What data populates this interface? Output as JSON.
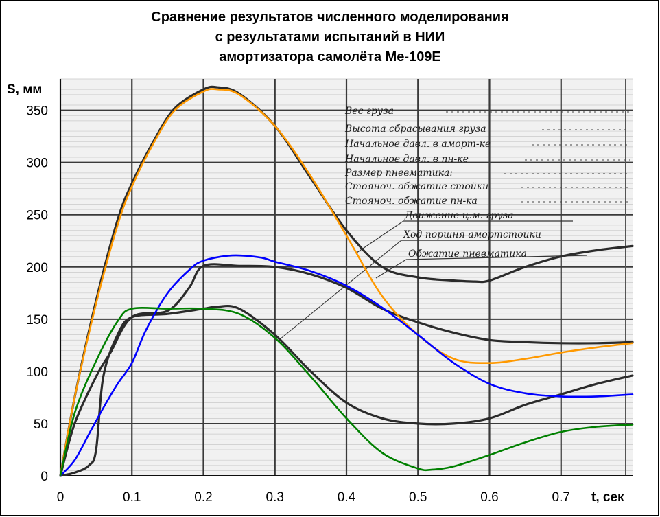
{
  "chart_data": {
    "type": "line",
    "title": [
      "Сравнение результатов численного моделирования",
      "с результатами испытаний в НИИ",
      "амортизатора самолёта Ме-109Е"
    ],
    "xlabel": "t, сек",
    "ylabel": "S, мм",
    "xlim": [
      0,
      0.8
    ],
    "ylim": [
      0,
      380
    ],
    "xticks": [
      0,
      0.1,
      0.2,
      0.3,
      0.4,
      0.5,
      0.6,
      0.7
    ],
    "xtick_labels": [
      "0",
      "0.1",
      "0.2",
      "0.3",
      "0.4",
      "0.5",
      "0.6",
      "0.7"
    ],
    "yticks": [
      0,
      50,
      100,
      150,
      200,
      250,
      300,
      350
    ],
    "ytick_labels": [
      "0",
      "50",
      "100",
      "150",
      "200",
      "250",
      "300",
      "350"
    ],
    "grid": true,
    "annotations": [
      "Вес груза",
      "Высота сбрасывания груза",
      "Начальное давл. в аморт-ке",
      "Начальное давл. в пн-ке",
      "Размер пневматика:",
      "Стояноч. обжатие стойки",
      "Стояноч. обжатие пн-ка",
      "Движение ц.м. груза",
      "Ход поршня амортстойки",
      "Обжатие пневматика"
    ],
    "series": [
      {
        "style": "orange",
        "color": "#ff9900",
        "x": [
          0,
          0.02,
          0.05,
          0.08,
          0.1,
          0.13,
          0.16,
          0.2,
          0.22,
          0.25,
          0.3,
          0.35,
          0.4,
          0.45,
          0.5,
          0.55,
          0.6,
          0.65,
          0.7,
          0.75,
          0.8
        ],
        "y": [
          0,
          75,
          165,
          240,
          277,
          318,
          350,
          368,
          370,
          365,
          335,
          287,
          230,
          172,
          135,
          112,
          108,
          112,
          118,
          123,
          127
        ]
      },
      {
        "style": "blue",
        "color": "#0000ff",
        "x": [
          0,
          0.02,
          0.04,
          0.06,
          0.08,
          0.1,
          0.12,
          0.15,
          0.18,
          0.2,
          0.24,
          0.28,
          0.3,
          0.35,
          0.4,
          0.45,
          0.5,
          0.55,
          0.6,
          0.65,
          0.7,
          0.75,
          0.8
        ],
        "y": [
          0,
          15,
          40,
          65,
          88,
          108,
          140,
          175,
          197,
          206,
          211,
          209,
          205,
          196,
          182,
          161,
          135,
          108,
          88,
          79,
          76,
          76,
          78
        ]
      },
      {
        "style": "green",
        "color": "#008000",
        "x": [
          0,
          0.02,
          0.05,
          0.08,
          0.1,
          0.15,
          0.2,
          0.25,
          0.3,
          0.35,
          0.4,
          0.45,
          0.5,
          0.52,
          0.55,
          0.6,
          0.65,
          0.7,
          0.75,
          0.8
        ],
        "y": [
          0,
          60,
          110,
          148,
          160,
          160,
          160,
          155,
          132,
          95,
          55,
          22,
          7,
          6,
          9,
          20,
          32,
          42,
          47,
          49
        ]
      },
      {
        "style": "black-cm",
        "color": "#2b2b2b",
        "x": [
          0,
          0.02,
          0.05,
          0.08,
          0.1,
          0.13,
          0.16,
          0.2,
          0.22,
          0.25,
          0.3,
          0.35,
          0.4,
          0.45,
          0.5,
          0.55,
          0.58,
          0.6,
          0.65,
          0.7,
          0.75,
          0.8
        ],
        "y": [
          0,
          75,
          168,
          245,
          280,
          320,
          352,
          370,
          372,
          366,
          335,
          285,
          235,
          200,
          190,
          187,
          186,
          187,
          200,
          210,
          216,
          220
        ]
      },
      {
        "style": "black-piston",
        "color": "#2b2b2b",
        "x": [
          0,
          0.02,
          0.05,
          0.07,
          0.1,
          0.15,
          0.18,
          0.2,
          0.25,
          0.3,
          0.35,
          0.4,
          0.45,
          0.5,
          0.55,
          0.6,
          0.65,
          0.7,
          0.75,
          0.8
        ],
        "y": [
          0,
          50,
          95,
          118,
          152,
          158,
          180,
          201,
          201,
          200,
          193,
          180,
          160,
          147,
          137,
          130,
          128,
          127,
          127,
          128
        ]
      },
      {
        "style": "black-tire",
        "color": "#2b2b2b",
        "x": [
          0,
          0.02,
          0.04,
          0.05,
          0.06,
          0.08,
          0.1,
          0.15,
          0.2,
          0.22,
          0.25,
          0.3,
          0.35,
          0.4,
          0.45,
          0.5,
          0.55,
          0.6,
          0.65,
          0.7,
          0.75,
          0.8
        ],
        "y": [
          0,
          3,
          10,
          25,
          95,
          135,
          152,
          155,
          160,
          162,
          160,
          135,
          100,
          70,
          55,
          50,
          50,
          55,
          68,
          78,
          88,
          96
        ]
      }
    ]
  }
}
